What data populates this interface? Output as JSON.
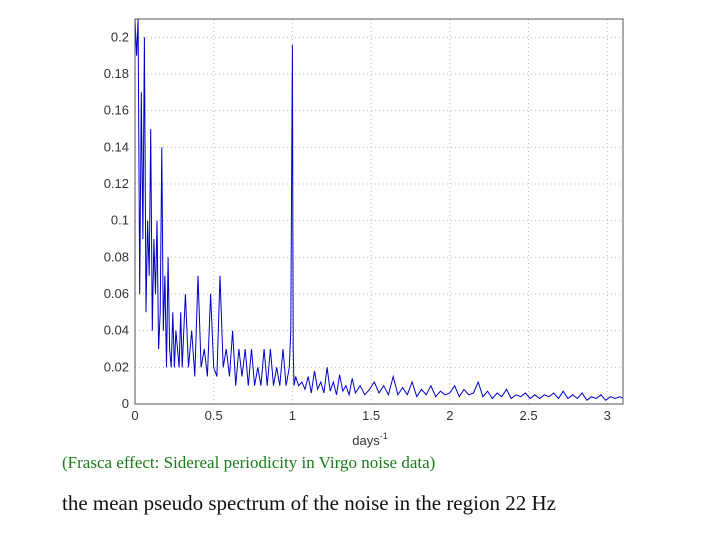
{
  "chart_data": {
    "type": "line",
    "title": "",
    "xlabel": "days",
    "xlabel_exponent": "-1",
    "ylabel": "",
    "xlim": [
      0,
      3.1
    ],
    "ylim": [
      0,
      0.21
    ],
    "xticks": [
      "0",
      "0.5",
      "1",
      "1.5",
      "2",
      "2.5",
      "3"
    ],
    "xtick_values": [
      0,
      0.5,
      1,
      1.5,
      2,
      2.5,
      3
    ],
    "yticks": [
      "0",
      "0.02",
      "0.04",
      "0.06",
      "0.08",
      "0.1",
      "0.12",
      "0.14",
      "0.16",
      "0.18",
      "0.2"
    ],
    "ytick_values": [
      0,
      0.02,
      0.04,
      0.06,
      0.08,
      0.1,
      0.12,
      0.14,
      0.16,
      0.18,
      0.2
    ],
    "grid": true,
    "series": [
      {
        "color": "#0000cc",
        "x": [
          0.0,
          0.01,
          0.02,
          0.03,
          0.04,
          0.05,
          0.06,
          0.07,
          0.08,
          0.09,
          0.1,
          0.11,
          0.12,
          0.13,
          0.14,
          0.15,
          0.16,
          0.17,
          0.18,
          0.19,
          0.2,
          0.21,
          0.22,
          0.23,
          0.24,
          0.25,
          0.26,
          0.27,
          0.28,
          0.29,
          0.3,
          0.32,
          0.34,
          0.36,
          0.38,
          0.4,
          0.42,
          0.44,
          0.46,
          0.48,
          0.5,
          0.52,
          0.54,
          0.56,
          0.58,
          0.6,
          0.62,
          0.64,
          0.66,
          0.68,
          0.7,
          0.72,
          0.74,
          0.76,
          0.78,
          0.8,
          0.82,
          0.84,
          0.86,
          0.88,
          0.9,
          0.92,
          0.94,
          0.96,
          0.98,
          0.99,
          0.995,
          1.0,
          1.005,
          1.01,
          1.02,
          1.04,
          1.06,
          1.08,
          1.1,
          1.12,
          1.14,
          1.16,
          1.18,
          1.2,
          1.22,
          1.24,
          1.26,
          1.28,
          1.3,
          1.32,
          1.34,
          1.36,
          1.38,
          1.4,
          1.43,
          1.46,
          1.49,
          1.52,
          1.55,
          1.58,
          1.61,
          1.64,
          1.67,
          1.7,
          1.73,
          1.76,
          1.79,
          1.82,
          1.85,
          1.88,
          1.91,
          1.94,
          1.97,
          2.0,
          2.03,
          2.06,
          2.09,
          2.12,
          2.15,
          2.18,
          2.21,
          2.24,
          2.27,
          2.3,
          2.33,
          2.36,
          2.39,
          2.42,
          2.45,
          2.48,
          2.51,
          2.54,
          2.57,
          2.6,
          2.63,
          2.66,
          2.69,
          2.72,
          2.75,
          2.78,
          2.81,
          2.84,
          2.87,
          2.9,
          2.93,
          2.96,
          2.99,
          3.02,
          3.05,
          3.08,
          3.1
        ],
        "y": [
          0.21,
          0.19,
          0.21,
          0.06,
          0.17,
          0.09,
          0.2,
          0.05,
          0.1,
          0.07,
          0.15,
          0.04,
          0.09,
          0.06,
          0.1,
          0.03,
          0.05,
          0.14,
          0.04,
          0.07,
          0.02,
          0.08,
          0.03,
          0.02,
          0.05,
          0.02,
          0.04,
          0.03,
          0.02,
          0.05,
          0.02,
          0.06,
          0.02,
          0.04,
          0.015,
          0.07,
          0.02,
          0.03,
          0.015,
          0.06,
          0.02,
          0.015,
          0.07,
          0.02,
          0.03,
          0.015,
          0.04,
          0.01,
          0.03,
          0.015,
          0.03,
          0.01,
          0.03,
          0.01,
          0.02,
          0.01,
          0.03,
          0.01,
          0.03,
          0.01,
          0.02,
          0.01,
          0.03,
          0.01,
          0.02,
          0.04,
          0.12,
          0.196,
          0.03,
          0.01,
          0.015,
          0.01,
          0.012,
          0.008,
          0.015,
          0.006,
          0.018,
          0.008,
          0.012,
          0.006,
          0.02,
          0.007,
          0.012,
          0.005,
          0.016,
          0.007,
          0.01,
          0.005,
          0.014,
          0.006,
          0.01,
          0.005,
          0.008,
          0.012,
          0.006,
          0.01,
          0.005,
          0.015,
          0.005,
          0.009,
          0.005,
          0.012,
          0.004,
          0.008,
          0.005,
          0.01,
          0.004,
          0.007,
          0.005,
          0.006,
          0.01,
          0.004,
          0.008,
          0.005,
          0.006,
          0.012,
          0.004,
          0.007,
          0.003,
          0.006,
          0.004,
          0.008,
          0.003,
          0.005,
          0.004,
          0.006,
          0.003,
          0.005,
          0.003,
          0.005,
          0.004,
          0.006,
          0.003,
          0.007,
          0.003,
          0.005,
          0.003,
          0.006,
          0.002,
          0.004,
          0.003,
          0.005,
          0.002,
          0.004,
          0.003,
          0.004,
          0.003
        ]
      }
    ]
  },
  "caption": "(Frasca effect:  Sidereal periodicity in Virgo noise data)",
  "subtitle": "the mean pseudo spectrum of the noise in the region 22 Hz"
}
